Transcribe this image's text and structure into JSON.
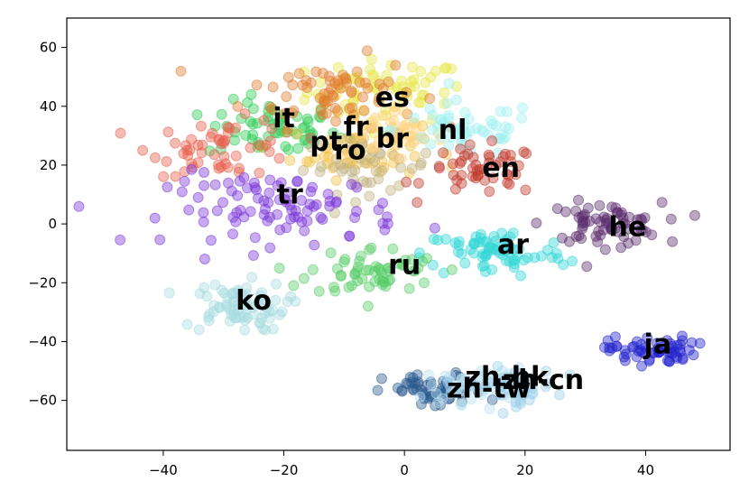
{
  "chart_data": {
    "type": "scatter",
    "title": "",
    "xlabel": "",
    "ylabel": "",
    "xlim": [
      -56,
      54
    ],
    "ylim": [
      -77,
      70
    ],
    "x_ticks": [
      -40,
      -20,
      0,
      20,
      40
    ],
    "y_ticks": [
      -60,
      -40,
      -20,
      0,
      20,
      40,
      60
    ],
    "x_tick_labels": [
      "−40",
      "−20",
      "0",
      "20",
      "40"
    ],
    "y_tick_labels": [
      "−60",
      "−40",
      "−20",
      "0",
      "20",
      "40",
      "60"
    ],
    "grid": false,
    "series": [
      {
        "name": "es",
        "color": "#e8e84a",
        "label_pos": [
          -2,
          43
        ],
        "center": [
          -3,
          45
        ],
        "spread": [
          11,
          9
        ],
        "count": 70
      },
      {
        "name": "it",
        "color": "#2ecc55",
        "label_pos": [
          -20,
          36
        ],
        "center": [
          -22,
          32
        ],
        "spread": [
          9,
          8
        ],
        "count": 60
      },
      {
        "name": "fr",
        "color": "#e07b2e",
        "label_pos": [
          -8,
          33
        ],
        "center": [
          -12,
          45
        ],
        "spread": [
          12,
          10
        ],
        "count": 70
      },
      {
        "name": "pt",
        "color": "#f0c040",
        "label_pos": [
          -13,
          28
        ],
        "center": [
          -8,
          25
        ],
        "spread": [
          9,
          8
        ],
        "count": 50
      },
      {
        "name": "ro",
        "color": "#c2b280",
        "label_pos": [
          -9,
          25
        ],
        "center": [
          -6,
          20
        ],
        "spread": [
          9,
          8
        ],
        "count": 50
      },
      {
        "name": "br",
        "color": "#ffd27f",
        "label_pos": [
          -2,
          29
        ],
        "center": [
          -3,
          30
        ],
        "spread": [
          8,
          7
        ],
        "count": 45
      },
      {
        "name": "nl",
        "color": "#9ff0f0",
        "label_pos": [
          8,
          32
        ],
        "center": [
          10,
          32
        ],
        "spread": [
          10,
          8
        ],
        "count": 55
      },
      {
        "name": "en",
        "color": "#c0392b",
        "label_pos": [
          16,
          19
        ],
        "center": [
          13,
          18
        ],
        "spread": [
          8,
          7
        ],
        "count": 50
      },
      {
        "name": "tr",
        "color": "#e8604c",
        "label_pos": [
          -19,
          10
        ],
        "center": [
          -30,
          26
        ],
        "spread": [
          10,
          8
        ],
        "count": 55
      },
      {
        "name": "he",
        "color": "#5b2d6e",
        "label_pos": [
          37,
          -1
        ],
        "center": [
          33,
          0
        ],
        "spread": [
          8,
          6
        ],
        "count": 70
      },
      {
        "name": "ar",
        "color": "#33d6d6",
        "label_pos": [
          18,
          -7
        ],
        "center": [
          15,
          -10
        ],
        "spread": [
          10,
          7
        ],
        "count": 75
      },
      {
        "name": "ru",
        "color": "#55cc66",
        "label_pos": [
          0,
          -14
        ],
        "center": [
          -5,
          -16
        ],
        "spread": [
          9,
          7
        ],
        "count": 60
      },
      {
        "name": "ko",
        "color": "#a8dce0",
        "label_pos": [
          -25,
          -26
        ],
        "center": [
          -28,
          -28
        ],
        "spread": [
          7,
          7
        ],
        "count": 75
      },
      {
        "name": "ja",
        "color": "#2222cc",
        "label_pos": [
          42,
          -41
        ],
        "center": [
          41,
          -43
        ],
        "spread": [
          6,
          4
        ],
        "count": 60
      },
      {
        "name": "zh-tw",
        "color": "#2b5a8e",
        "label_pos": [
          14,
          -56
        ],
        "center": [
          5,
          -57
        ],
        "spread": [
          7,
          5
        ],
        "count": 55
      },
      {
        "name": "zh-hk",
        "color": "#b8e0f0",
        "label_pos": [
          17,
          -52
        ],
        "center": [
          12,
          -55
        ],
        "spread": [
          7,
          5
        ],
        "count": 55
      },
      {
        "name": "zh-cn",
        "color": "#9acfea",
        "label_pos": [
          23,
          -53
        ],
        "center": [
          18,
          -55
        ],
        "spread": [
          6,
          5
        ],
        "count": 50
      },
      {
        "name": "",
        "color": "#7a35d8",
        "label_pos": null,
        "center": [
          -20,
          5
        ],
        "spread": [
          16,
          10
        ],
        "count": 95
      }
    ]
  }
}
